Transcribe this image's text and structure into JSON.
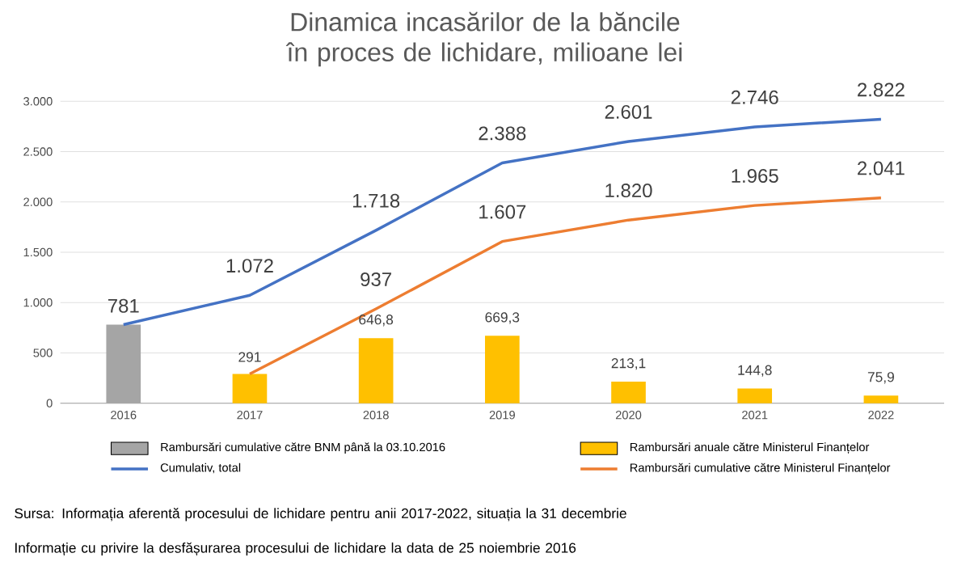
{
  "chart_data": {
    "type": "bar",
    "title": "Dinamica incasărilor de la băncile în proces de lichidare, milioane lei",
    "categories": [
      "2016",
      "2017",
      "2018",
      "2019",
      "2020",
      "2021",
      "2022"
    ],
    "series": [
      {
        "name": "Rambursări cumulative către BNM până la 03.10.2016",
        "color": "#a5a5a5",
        "values": [
          781,
          null,
          null,
          null,
          null,
          null,
          null
        ],
        "value_labels": [
          "781",
          null,
          null,
          null,
          null,
          null,
          null
        ]
      },
      {
        "name": "Rambursări anuale către Ministerul Finanțelor",
        "color": "#ffc000",
        "values": [
          null,
          291,
          646.8,
          669.3,
          213.1,
          144.8,
          75.9
        ],
        "value_labels": [
          null,
          "291",
          "646,8",
          "669,3",
          "213,1",
          "144,8",
          "75,9"
        ]
      },
      {
        "name": "Cumulativ, total",
        "type": "line",
        "color": "#4472c4",
        "values": [
          781,
          1072,
          1718,
          2388,
          2601,
          2746,
          2822
        ],
        "value_labels": [
          null,
          "1.072",
          "1.718",
          "2.388",
          "2.601",
          "2.746",
          "2.822"
        ]
      },
      {
        "name": "Rambursări cumulative către Ministerul Finanțelor",
        "type": "line",
        "color": "#ed7d31",
        "values": [
          null,
          291,
          937,
          1607,
          1820,
          1965,
          2041
        ],
        "value_labels": [
          null,
          null,
          "937",
          "1.607",
          "1.820",
          "1.965",
          "2.041"
        ]
      }
    ],
    "ylim": [
      0,
      3000
    ],
    "yticks": [
      0,
      500,
      {
        "value": 1000,
        "label": "1.000"
      },
      {
        "value": 1500,
        "label": "1.500"
      },
      {
        "value": 2000,
        "label": "2.000"
      },
      {
        "value": 2500,
        "label": "2.500"
      },
      {
        "value": 3000,
        "label": "3.000"
      }
    ],
    "grid": "y",
    "legend": "bottom",
    "marker": "none",
    "line_style": "solid",
    "annotations": [
      "Sursa: Informația aferentă procesului de lichidare pentru anii 2017-2022, situația la 31 decembrie",
      "Informație cu privire la desfășurarea procesului de lichidare la data de 25 noiembrie 2016"
    ]
  }
}
